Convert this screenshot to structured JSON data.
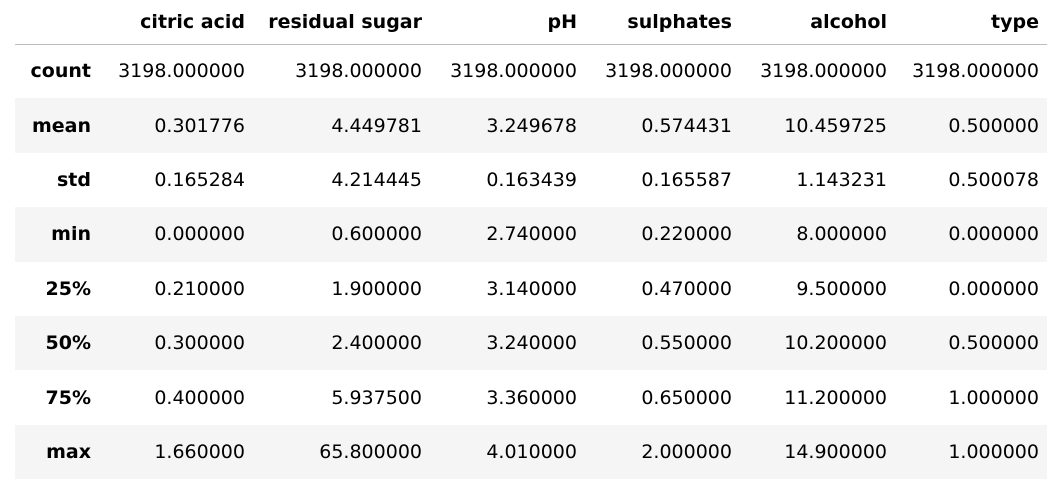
{
  "table": {
    "columns": [
      "",
      "citric acid",
      "residual sugar",
      "pH",
      "sulphates",
      "alcohol",
      "type"
    ],
    "rows": [
      {
        "index": "count",
        "values": [
          "3198.000000",
          "3198.000000",
          "3198.000000",
          "3198.000000",
          "3198.000000",
          "3198.000000"
        ]
      },
      {
        "index": "mean",
        "values": [
          "0.301776",
          "4.449781",
          "3.249678",
          "0.574431",
          "10.459725",
          "0.500000"
        ]
      },
      {
        "index": "std",
        "values": [
          "0.165284",
          "4.214445",
          "0.163439",
          "0.165587",
          "1.143231",
          "0.500078"
        ]
      },
      {
        "index": "min",
        "values": [
          "0.000000",
          "0.600000",
          "2.740000",
          "0.220000",
          "8.000000",
          "0.000000"
        ]
      },
      {
        "index": "25%",
        "values": [
          "0.210000",
          "1.900000",
          "3.140000",
          "0.470000",
          "9.500000",
          "0.000000"
        ]
      },
      {
        "index": "50%",
        "values": [
          "0.300000",
          "2.400000",
          "3.240000",
          "0.550000",
          "10.200000",
          "0.500000"
        ]
      },
      {
        "index": "75%",
        "values": [
          "0.400000",
          "5.937500",
          "3.360000",
          "0.650000",
          "11.200000",
          "1.000000"
        ]
      },
      {
        "index": "max",
        "values": [
          "1.660000",
          "65.800000",
          "4.010000",
          "2.000000",
          "14.900000",
          "1.000000"
        ]
      }
    ]
  }
}
